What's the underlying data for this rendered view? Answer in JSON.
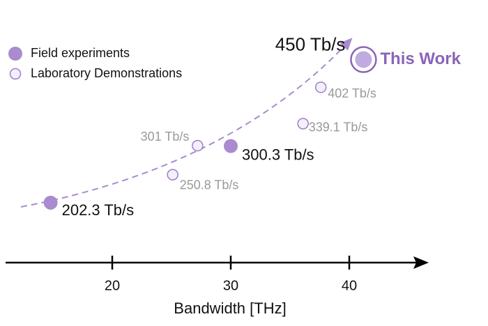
{
  "chart_data": {
    "type": "scatter",
    "xlabel": "Bandwidth [THz]",
    "xlim": [
      11,
      46
    ],
    "xticks": [
      20,
      30,
      40
    ],
    "ylim": [
      107,
      529
    ],
    "series": [
      {
        "name": "Field experiments",
        "color": "#a98bd0",
        "x": [
          14.8,
          30
        ],
        "values": [
          202.3,
          300.3
        ],
        "value_labels": [
          "202.3 Tb/s",
          "300.3 Tb/s"
        ]
      },
      {
        "name": "Laboratory Demonstrations",
        "color": "#9b7fc8",
        "x": [
          25.1,
          27.2,
          36.1,
          37.6
        ],
        "values": [
          250.8,
          301,
          339.1,
          402
        ],
        "value_labels": [
          "250.8 Tb/s",
          "301 Tb/s",
          "339.1 Tb/s",
          "402 Tb/s"
        ]
      },
      {
        "name": "This Work",
        "color": "#8a64b8",
        "x": [
          41.2
        ],
        "values": [
          450
        ],
        "value_labels": [
          "450 Tb/s"
        ]
      }
    ]
  }
}
